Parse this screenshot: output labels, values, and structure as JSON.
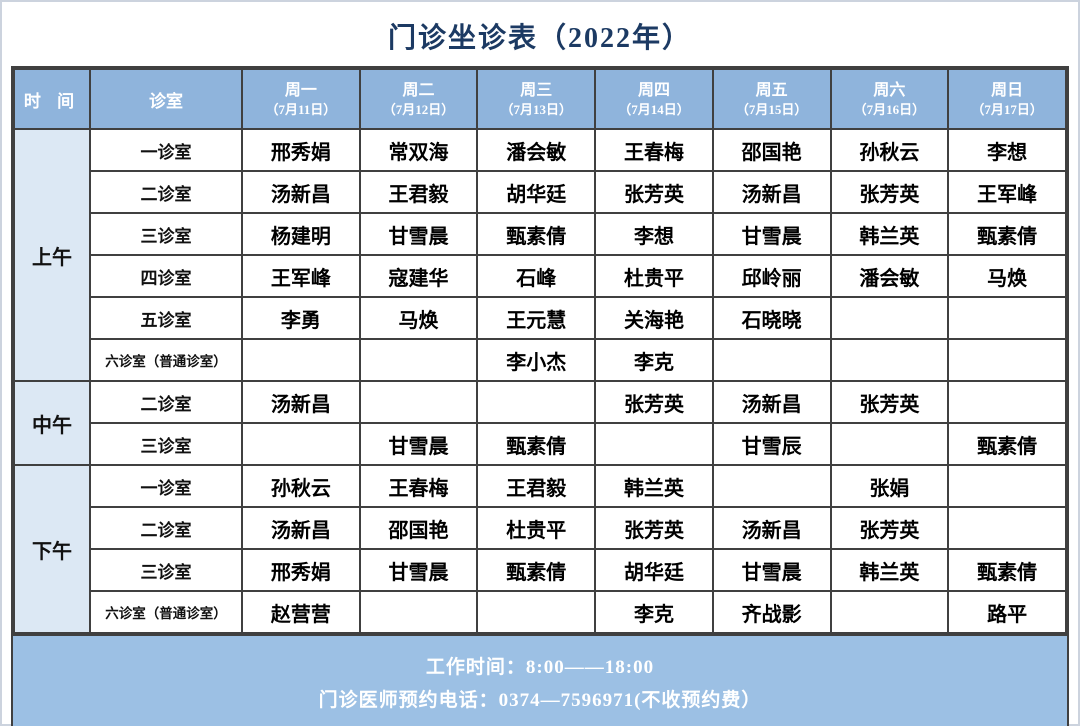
{
  "title": "门诊坐诊表（2022年）",
  "table": {
    "headers": {
      "time": "时 间",
      "room": "诊室",
      "days": [
        {
          "label": "周一",
          "date": "（7月11日）"
        },
        {
          "label": "周二",
          "date": "（7月12日）"
        },
        {
          "label": "周三",
          "date": "（7月13日）"
        },
        {
          "label": "周四",
          "date": "（7月14日）"
        },
        {
          "label": "周五",
          "date": "（7月15日）"
        },
        {
          "label": "周六",
          "date": "（7月16日）"
        },
        {
          "label": "周日",
          "date": "（7月17日）"
        }
      ]
    },
    "sections": [
      {
        "time": "上午",
        "rows": [
          {
            "room": "一诊室",
            "cells": [
              "邢秀娟",
              "常双海",
              "潘会敏",
              "王春梅",
              "邵国艳",
              "孙秋云",
              "李想"
            ]
          },
          {
            "room": "二诊室",
            "cells": [
              "汤新昌",
              "王君毅",
              "胡华廷",
              "张芳英",
              "汤新昌",
              "张芳英",
              "王军峰"
            ]
          },
          {
            "room": "三诊室",
            "cells": [
              "杨建明",
              "甘雪晨",
              "甄素倩",
              "李想",
              "甘雪晨",
              "韩兰英",
              "甄素倩"
            ]
          },
          {
            "room": "四诊室",
            "cells": [
              "王军峰",
              "寇建华",
              "石峰",
              "杜贵平",
              "邱岭丽",
              "潘会敏",
              "马焕"
            ]
          },
          {
            "room": "五诊室",
            "cells": [
              "李勇",
              "马焕",
              "王元慧",
              "关海艳",
              "石晓晓",
              "",
              ""
            ]
          },
          {
            "room": "六诊室（普通诊室）",
            "cells": [
              "",
              "",
              "李小杰",
              "李克",
              "",
              "",
              ""
            ]
          }
        ]
      },
      {
        "time": "中午",
        "rows": [
          {
            "room": "二诊室",
            "cells": [
              "汤新昌",
              "",
              "",
              "张芳英",
              "汤新昌",
              "张芳英",
              ""
            ]
          },
          {
            "room": "三诊室",
            "cells": [
              "",
              "甘雪晨",
              "甄素倩",
              "",
              "甘雪辰",
              "",
              "甄素倩"
            ]
          }
        ]
      },
      {
        "time": "下午",
        "rows": [
          {
            "room": "一诊室",
            "cells": [
              "孙秋云",
              "王春梅",
              "王君毅",
              "韩兰英",
              "",
              "张娟",
              ""
            ]
          },
          {
            "room": "二诊室",
            "cells": [
              "汤新昌",
              "邵国艳",
              "杜贵平",
              "张芳英",
              "汤新昌",
              "张芳英",
              ""
            ]
          },
          {
            "room": "三诊室",
            "cells": [
              "邢秀娟",
              "甘雪晨",
              "甄素倩",
              "胡华廷",
              "甘雪晨",
              "韩兰英",
              "甄素倩"
            ]
          },
          {
            "room": "六诊室（普通诊室）",
            "cells": [
              "赵营营",
              "",
              "",
              "李克",
              "齐战影",
              "",
              "路平"
            ]
          }
        ]
      }
    ]
  },
  "footer": {
    "line1": "工作时间：8:00——18:00",
    "line2": "门诊医师预约电话：0374—7596971(不收预约费）"
  },
  "colors": {
    "header_blue": "#8fb4dc",
    "footer_blue": "#9cc0e4",
    "timecol_blue": "#dce8f4",
    "grid_color": "#404040",
    "title_color": "#1c3a63",
    "page_border": "#ccd3de"
  }
}
